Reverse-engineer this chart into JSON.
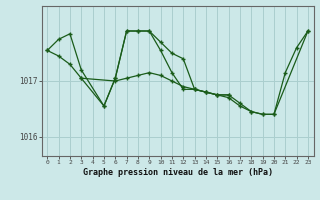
{
  "title": "Graphe pression niveau de la mer (hPa)",
  "bg_color": "#cce8e8",
  "line_color": "#1a5c1a",
  "grid_color": "#aacece",
  "series1_x": [
    0,
    1,
    2,
    3,
    5,
    6,
    7,
    8,
    9,
    10,
    11,
    12,
    13,
    14,
    15,
    16,
    17,
    18,
    19,
    20,
    21,
    22,
    23
  ],
  "series1_y": [
    1017.55,
    1017.75,
    1017.85,
    1017.2,
    1016.55,
    1017.05,
    1017.9,
    1017.9,
    1017.9,
    1017.55,
    1017.15,
    1016.85,
    1016.85,
    1016.8,
    1016.75,
    1016.75,
    1016.6,
    1016.45,
    1016.4,
    1016.4,
    1017.15,
    1017.6,
    1017.9
  ],
  "series2_x": [
    0,
    1,
    2,
    3,
    6,
    7,
    8,
    9,
    10,
    11,
    12,
    13,
    14,
    15,
    16,
    17,
    18,
    19,
    20,
    23
  ],
  "series2_y": [
    1017.55,
    1017.45,
    1017.3,
    1017.05,
    1017.0,
    1017.05,
    1017.1,
    1017.15,
    1017.1,
    1017.0,
    1016.9,
    1016.85,
    1016.8,
    1016.75,
    1016.7,
    1016.55,
    1016.45,
    1016.4,
    1016.4,
    1017.9
  ],
  "series3_x": [
    3,
    5,
    6,
    7,
    8,
    9,
    10,
    11,
    12,
    13,
    14,
    15,
    16
  ],
  "series3_y": [
    1017.05,
    1016.55,
    1017.05,
    1017.9,
    1017.9,
    1017.9,
    1017.7,
    1017.5,
    1017.4,
    1016.85,
    1016.8,
    1016.75,
    1016.75
  ],
  "yticks": [
    1016,
    1017
  ],
  "xticks": [
    0,
    1,
    2,
    3,
    4,
    5,
    6,
    7,
    8,
    9,
    10,
    11,
    12,
    13,
    14,
    15,
    16,
    17,
    18,
    19,
    20,
    21,
    22,
    23
  ],
  "ylim": [
    1015.65,
    1018.35
  ],
  "xlim": [
    -0.5,
    23.5
  ]
}
